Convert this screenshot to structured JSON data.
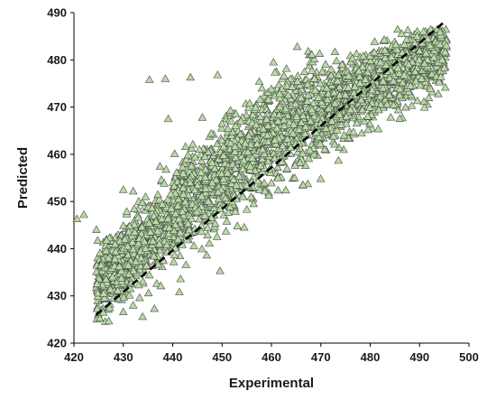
{
  "chart_data": {
    "type": "scatter",
    "xlabel": "Experimental",
    "ylabel": "Predicted",
    "xlim": [
      420,
      500
    ],
    "ylim": [
      420,
      490
    ],
    "x_ticks": [
      "420",
      "430",
      "440",
      "450",
      "460",
      "470",
      "480",
      "490",
      "500"
    ],
    "y_ticks": [
      "420",
      "430",
      "440",
      "450",
      "460",
      "470",
      "480",
      "490"
    ],
    "grid": false,
    "legend": "none",
    "marker": {
      "shape": "triangle",
      "fill": "#b7dba4",
      "stroke": "#4a4a4a"
    },
    "reference_line": {
      "style": "dashed",
      "color": "#000000",
      "x": [
        424.5,
        495
      ],
      "y": [
        426,
        488
      ]
    },
    "colors": {
      "background": "#ffffff",
      "axis": "#000000"
    },
    "series": [
      {
        "points": [
          [
            420.6,
            446.3
          ],
          [
            422.0,
            447.2
          ],
          [
            426.5,
            433.5
          ],
          [
            427.4,
            431.4
          ],
          [
            427.8,
            434.0
          ],
          [
            428.3,
            437.8
          ],
          [
            428.9,
            431.1
          ],
          [
            429.2,
            436.2
          ],
          [
            429.6,
            433.7
          ],
          [
            430.0,
            426.6
          ],
          [
            430.0,
            452.5
          ],
          [
            430.3,
            442.0
          ],
          [
            430.9,
            440.5
          ],
          [
            431.2,
            434.6
          ],
          [
            431.4,
            431.5
          ],
          [
            432.0,
            428.0
          ],
          [
            432.1,
            435.3
          ],
          [
            432.3,
            443.5
          ],
          [
            433.0,
            446.6
          ],
          [
            433.1,
            432.3
          ],
          [
            433.3,
            429.6
          ],
          [
            433.6,
            438.0
          ],
          [
            433.9,
            425.6
          ],
          [
            434.3,
            441.5
          ],
          [
            434.5,
            451.0
          ],
          [
            434.7,
            436.4
          ],
          [
            435.1,
            430.6
          ],
          [
            435.3,
            475.8
          ],
          [
            435.5,
            443.5
          ],
          [
            435.8,
            448.6
          ],
          [
            436.2,
            438.4
          ],
          [
            436.3,
            427.3
          ],
          [
            436.6,
            445.8
          ],
          [
            437.3,
            441.0
          ],
          [
            437.6,
            432.1
          ],
          [
            437.9,
            449.4
          ],
          [
            438.5,
            476.0
          ],
          [
            438.8,
            440.8
          ],
          [
            439.1,
            467.5
          ],
          [
            439.3,
            444.4
          ],
          [
            439.6,
            451.6
          ],
          [
            440.2,
            437.2
          ],
          [
            440.6,
            447.4
          ],
          [
            440.8,
            456.1
          ],
          [
            441.1,
            442.0
          ],
          [
            441.6,
            433.6
          ],
          [
            442.1,
            452.8
          ],
          [
            442.6,
            461.6
          ],
          [
            443.1,
            445.3
          ],
          [
            443.6,
            476.3
          ],
          [
            443.8,
            457.5
          ],
          [
            444.3,
            440.6
          ],
          [
            444.5,
            452.4
          ],
          [
            444.9,
            447.8
          ],
          [
            445.4,
            461.0
          ],
          [
            445.8,
            443.6
          ],
          [
            446.0,
            467.8
          ],
          [
            446.6,
            455.1
          ],
          [
            446.9,
            438.6
          ],
          [
            447.2,
            450.0
          ],
          [
            447.8,
            464.4
          ],
          [
            448.0,
            458.2
          ],
          [
            448.6,
            445.3
          ],
          [
            449.1,
            476.8
          ],
          [
            449.2,
            452.0
          ],
          [
            449.6,
            435.3
          ],
          [
            450.0,
            466.5
          ],
          [
            450.3,
            459.7
          ],
          [
            450.8,
            443.7
          ],
          [
            451.1,
            456.0
          ],
          [
            451.7,
            469.3
          ],
          [
            452.1,
            449.9
          ],
          [
            452.6,
            461.6
          ],
          [
            453.1,
            444.8
          ],
          [
            453.5,
            455.3
          ],
          [
            453.8,
            467.0
          ],
          [
            454.2,
            451.0
          ],
          [
            454.7,
            462.3
          ],
          [
            455.0,
            448.3
          ],
          [
            455.6,
            470.8
          ],
          [
            456.1,
            459.2
          ],
          [
            456.4,
            449.5
          ],
          [
            456.9,
            466.2
          ],
          [
            457.3,
            454.3
          ],
          [
            457.7,
            471.6
          ],
          [
            458.2,
            461.0
          ],
          [
            458.7,
            452.2
          ],
          [
            459.0,
            467.4
          ],
          [
            459.6,
            456.8
          ],
          [
            460.0,
            473.8
          ],
          [
            460.4,
            479.5
          ],
          [
            460.7,
            463.0
          ],
          [
            461.3,
            455.0
          ],
          [
            461.7,
            470.0
          ],
          [
            462.1,
            458.4
          ],
          [
            462.6,
            466.0
          ],
          [
            462.9,
            452.4
          ],
          [
            463.4,
            472.5
          ],
          [
            463.9,
            461.4
          ],
          [
            464.2,
            474.3
          ],
          [
            464.7,
            455.0
          ],
          [
            465.1,
            468.0
          ],
          [
            465.6,
            462.3
          ],
          [
            466.0,
            471.9
          ],
          [
            466.4,
            453.5
          ],
          [
            466.9,
            465.8
          ],
          [
            467.3,
            474.8
          ],
          [
            467.8,
            460.8
          ],
          [
            468.2,
            469.4
          ],
          [
            468.7,
            476.0
          ],
          [
            469.1,
            464.6
          ],
          [
            469.5,
            472.0
          ],
          [
            470.0,
            466.6
          ],
          [
            470.3,
            477.5
          ],
          [
            470.8,
            461.0
          ],
          [
            471.2,
            474.0
          ],
          [
            471.7,
            468.3
          ],
          [
            472.1,
            478.0
          ],
          [
            472.6,
            463.8
          ],
          [
            472.9,
            470.8
          ],
          [
            473.4,
            475.5
          ],
          [
            473.8,
            468.4
          ],
          [
            474.3,
            479.0
          ],
          [
            474.7,
            464.0
          ],
          [
            475.0,
            472.6
          ],
          [
            475.6,
            476.6
          ],
          [
            476.0,
            469.4
          ],
          [
            476.4,
            480.3
          ],
          [
            476.9,
            474.3
          ],
          [
            477.3,
            466.6
          ],
          [
            477.7,
            477.6
          ],
          [
            478.2,
            471.5
          ],
          [
            478.6,
            480.8
          ],
          [
            479.0,
            475.8
          ],
          [
            479.5,
            468.0
          ],
          [
            479.9,
            478.4
          ],
          [
            480.4,
            473.6
          ],
          [
            480.8,
            481.6
          ],
          [
            481.2,
            476.4
          ],
          [
            481.7,
            469.4
          ],
          [
            482.1,
            479.5
          ],
          [
            482.6,
            474.0
          ],
          [
            483.0,
            482.0
          ],
          [
            483.4,
            477.5
          ],
          [
            483.9,
            472.5
          ],
          [
            484.3,
            480.6
          ],
          [
            484.7,
            475.5
          ],
          [
            485.2,
            483.2
          ],
          [
            485.6,
            478.2
          ],
          [
            486.0,
            473.8
          ],
          [
            486.5,
            481.5
          ],
          [
            486.9,
            476.8
          ],
          [
            487.4,
            484.3
          ],
          [
            487.8,
            479.0
          ],
          [
            488.2,
            474.5
          ],
          [
            488.6,
            482.3
          ],
          [
            489.1,
            477.5
          ],
          [
            489.5,
            485.0
          ],
          [
            489.9,
            480.0
          ],
          [
            490.4,
            476.0
          ],
          [
            490.8,
            486.0
          ],
          [
            491.3,
            481.4
          ],
          [
            491.6,
            478.6
          ],
          [
            492.1,
            483.0
          ],
          [
            492.5,
            477.0
          ],
          [
            492.9,
            480.5
          ],
          [
            493.4,
            476.5
          ],
          [
            493.8,
            479.5
          ],
          [
            494.2,
            477.6
          ],
          [
            494.6,
            480.0
          ],
          [
            495.0,
            478.3
          ],
          [
            494.3,
            476.4
          ],
          [
            491.0,
            479.2
          ],
          [
            425.5,
            436.5
          ],
          [
            426.0,
            430.5
          ],
          [
            427.0,
            438.0
          ]
        ]
      }
    ]
  }
}
